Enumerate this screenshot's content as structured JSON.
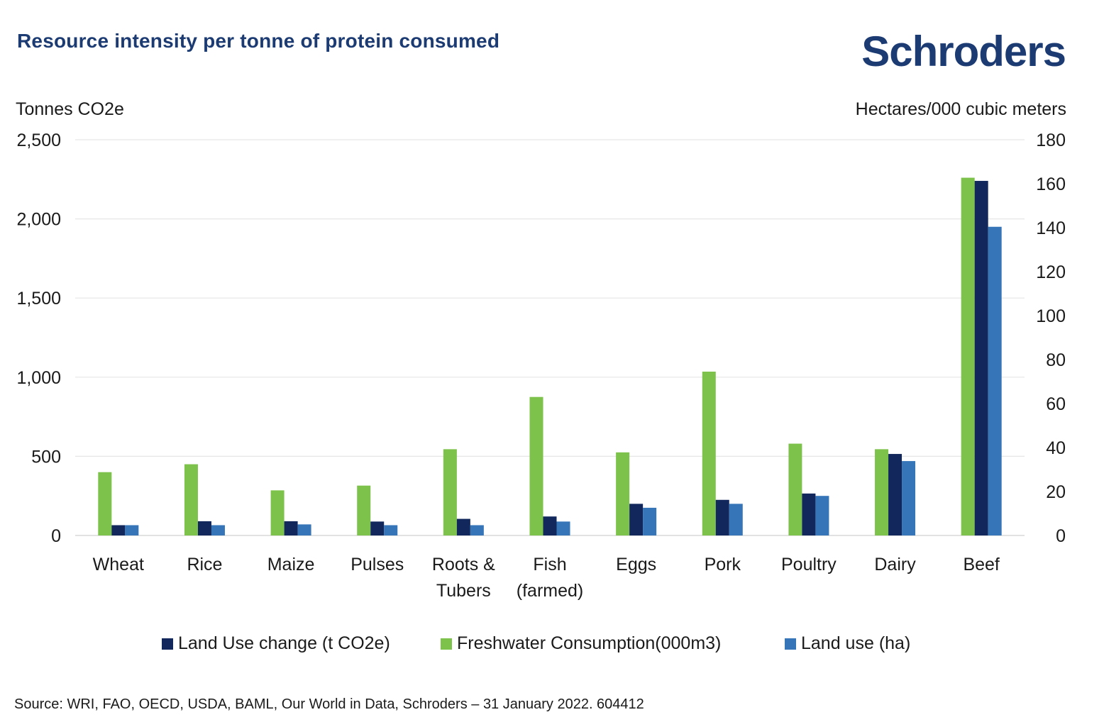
{
  "title": "Resource intensity per tonne of protein consumed",
  "logo_text": "Schroders",
  "source": "Source: WRI, FAO, OECD, USDA, BAML, Our World in Data, Schroders – 31 January 2022. 604412",
  "colors": {
    "title": "#1c3b73",
    "land_use_change": "#12285c",
    "freshwater": "#7dc24b",
    "land_use": "#3575b8",
    "grid": "#e6e6e6"
  },
  "chart_data": {
    "type": "bar",
    "categories": [
      [
        "Wheat"
      ],
      [
        "Rice"
      ],
      [
        "Maize"
      ],
      [
        "Pulses"
      ],
      [
        "Roots &",
        "Tubers"
      ],
      [
        "Fish",
        "(farmed)"
      ],
      [
        "Eggs"
      ],
      [
        "Pork"
      ],
      [
        "Poultry"
      ],
      [
        "Dairy"
      ],
      [
        "Beef"
      ]
    ],
    "ylabel_left": "Tonnes CO2e",
    "ylabel_right": "Hectares/000 cubic meters",
    "ylim_left": [
      0,
      2500
    ],
    "ylim_right": [
      0,
      180
    ],
    "yticks_left": [
      "2,500",
      "2,000",
      "1,500",
      "1,000",
      "500",
      "0"
    ],
    "yticks_right": [
      "180",
      "160",
      "140",
      "120",
      "100",
      "80",
      "60",
      "40",
      "20",
      "0"
    ],
    "grid": true,
    "legend_position": "bottom",
    "series": [
      {
        "name": "Freshwater Consumption(000m3)",
        "axis": "left",
        "values": [
          400,
          450,
          285,
          315,
          545,
          875,
          525,
          1035,
          580,
          545,
          2260
        ]
      },
      {
        "name": "Land Use change (t CO2e)",
        "axis": "left",
        "values": [
          65,
          90,
          90,
          88,
          105,
          120,
          200,
          225,
          265,
          515,
          2240
        ]
      },
      {
        "name": "Land use (ha)",
        "axis": "left",
        "values": [
          65,
          65,
          70,
          65,
          65,
          88,
          175,
          200,
          250,
          470,
          1950
        ]
      }
    ]
  },
  "legend": [
    {
      "label": "Land Use change (t CO2e)",
      "color": "#12285c"
    },
    {
      "label": "Freshwater Consumption(000m3)",
      "color": "#7dc24b"
    },
    {
      "label": "Land use (ha)",
      "color": "#3575b8"
    }
  ]
}
